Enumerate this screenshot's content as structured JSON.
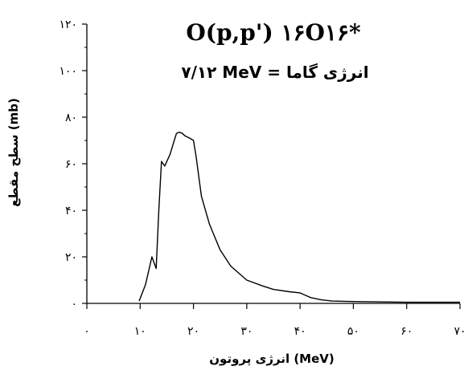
{
  "chart_data": {
    "type": "line",
    "title": "O(p,p') ۱۶O۱۶*",
    "subtitle": "۷/۱۲ MeV = انرژی گاما",
    "xlabel": "انرژی پروتون (MeV)",
    "ylabel": "سطح مقطع (mb)",
    "xlim": [
      0,
      70
    ],
    "ylim": [
      0,
      120
    ],
    "x_ticks": [
      0,
      10,
      20,
      30,
      40,
      50,
      60,
      70
    ],
    "x_tick_labels": [
      "۰",
      "۱۰",
      "۲۰",
      "۳۰",
      "۴۰",
      "۵۰",
      "۶۰",
      "۷۰"
    ],
    "y_ticks": [
      0,
      20,
      40,
      60,
      80,
      100,
      120
    ],
    "y_tick_labels": [
      "۰",
      "۲۰",
      "۴۰",
      "۶۰",
      "۸۰",
      "۱۰۰",
      "۱۲۰"
    ],
    "grid": false,
    "legend": "none",
    "line_color": "#000000",
    "series": [
      {
        "x": [
          9.8,
          11.0,
          12.2,
          13.0,
          13.5,
          14.0,
          14.6,
          15.6,
          16.4,
          16.8,
          17.3,
          17.8,
          18.4,
          19.3,
          20.0,
          20.5,
          21.5,
          23,
          25,
          27,
          30,
          33,
          35,
          38,
          40,
          42,
          44,
          46,
          50,
          60,
          70
        ],
        "y": [
          1,
          8,
          20,
          15,
          40,
          61,
          59,
          64,
          70,
          73,
          73.5,
          73.2,
          72,
          71,
          70,
          63,
          46,
          34,
          23,
          16,
          10,
          7.5,
          6,
          5,
          4.5,
          2.5,
          1.5,
          1,
          0.8,
          0.5,
          0.5
        ]
      }
    ]
  }
}
